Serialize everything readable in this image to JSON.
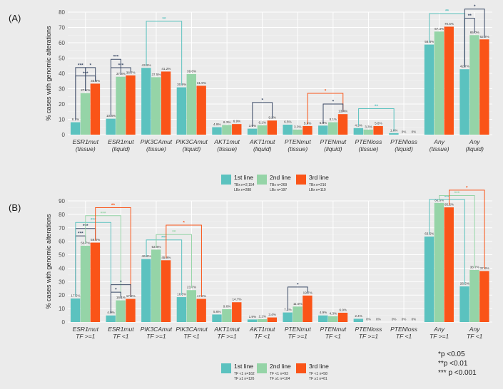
{
  "chart_data": [
    {
      "type": "bar",
      "panel_label": "(A)",
      "ylabel": "% cases with genomic alterations",
      "ylim": [
        0,
        80
      ],
      "yticks": [
        0,
        10,
        20,
        30,
        40,
        50,
        60,
        70,
        80
      ],
      "categories": [
        [
          "ESR1mut",
          "(tissue)"
        ],
        [
          "ESR1mut",
          "(liquid)"
        ],
        [
          "PIK3CAmut",
          "(tissue)"
        ],
        [
          "PIK3CAmut",
          "(liquid)"
        ],
        [
          "AKT1mut",
          "(tissue)"
        ],
        [
          "AKT1mut",
          "(liquid)"
        ],
        [
          "PTENmut",
          "(tissue)"
        ],
        [
          "PTENmut",
          "(liquid)"
        ],
        [
          "PTENloss",
          "(tissue)"
        ],
        [
          "PTENloss",
          "(liquid)"
        ],
        [
          "Any",
          "(tissue)"
        ],
        [
          "Any",
          "(liquid)"
        ]
      ],
      "series": [
        {
          "name": "1st line",
          "color": "#5bc2bf",
          "values": [
            8.1,
            10.4,
            43.6,
            30.9,
            4.9,
            3.9,
            6.5,
            5.9,
            4.3,
            1.0,
            58.8,
            42.7
          ],
          "labels": [
            "8.1%",
            "10.4%",
            "43.6%",
            "30.9%",
            "4.9%",
            "3.9%",
            "6.5%",
            "5.9%",
            "4.3%",
            "1.0%",
            "58.8%",
            "42.7%"
          ]
        },
        {
          "name": "2nd line",
          "color": "#95d4a7",
          "values": [
            27.1,
            37.8,
            37.5,
            39.6,
            6.3,
            6.1,
            3.3,
            8.1,
            3.3,
            0,
            67.3,
            65.0
          ],
          "labels": [
            "27.1%",
            "37.8%",
            "37.5%",
            "39.6%",
            "6.3%",
            "6.1%",
            "3.3%",
            "8.1%",
            "3.3%",
            "0%",
            "67.3%",
            "65.0%"
          ]
        },
        {
          "name": "3rd line",
          "color": "#fa5418",
          "values": [
            33.3,
            38.7,
            41.2,
            31.9,
            6.9,
            9.2,
            5.6,
            13.4,
            5.6,
            0,
            70.5,
            62.2
          ],
          "labels": [
            "33.3%",
            "38.7%",
            "41.2%",
            "31.9%",
            "6.9%",
            "9.2%",
            "5.6%",
            "13.4%",
            "5.6%",
            "0%",
            "70.5%",
            "62.2%"
          ]
        }
      ],
      "significance": [
        {
          "cat": 0,
          "from": 0,
          "to": 2,
          "level": 0,
          "label": "***",
          "color": "#3b4a66"
        },
        {
          "cat": 0,
          "from": 0,
          "to": 1,
          "level": 1,
          "label": "***",
          "color": "#3b4a66"
        },
        {
          "cat": 0,
          "from": 1,
          "to": 2,
          "level": 1,
          "label": "*",
          "color": "#3b4a66"
        },
        {
          "cat": 1,
          "from": 0,
          "to": 2,
          "level": 0,
          "label": "***",
          "color": "#3b4a66"
        },
        {
          "cat": 1,
          "from": 0,
          "to": 1,
          "level": 1,
          "label": "***",
          "color": "#3b4a66"
        },
        {
          "span": [
            2,
            0,
            3,
            0
          ],
          "y": 74,
          "label": "**",
          "color": "#5bc2bf"
        },
        {
          "cat": 5,
          "from": 0,
          "to": 2,
          "y": 21,
          "label": "*",
          "color": "#3b4a66"
        },
        {
          "span": [
            6,
            2,
            7,
            2
          ],
          "y": 27,
          "label": "*",
          "color": "#fa5418"
        },
        {
          "cat": 7,
          "from": 0,
          "to": 2,
          "y": 20,
          "label": "*",
          "color": "#3b4a66"
        },
        {
          "span": [
            8,
            0,
            9,
            0
          ],
          "y": 17,
          "label": "**",
          "color": "#5bc2bf"
        },
        {
          "span": [
            10,
            0,
            11,
            0
          ],
          "y": 79,
          "label": "**",
          "color": "#5bc2bf"
        },
        {
          "cat": 11,
          "from": 0,
          "to": 1,
          "y": 76,
          "label": "**",
          "color": "#3b4a66"
        },
        {
          "cat": 11,
          "from": 0,
          "to": 2,
          "y": 82,
          "label": "*",
          "color": "#3b4a66"
        }
      ],
      "legend": [
        {
          "name": "1st line",
          "color": "#5bc2bf",
          "note1": "TBx n=2,154",
          "note2": "LBx n=288"
        },
        {
          "name": "2nd line",
          "color": "#95d4a7",
          "note1": "TBx n=269",
          "note2": "LBx n=197"
        },
        {
          "name": "3rd line",
          "color": "#fa5418",
          "note1": "TBx n=216",
          "note2": "LBx n=119"
        }
      ]
    },
    {
      "type": "bar",
      "panel_label": "(B)",
      "ylabel": "% cases with genomic alterations",
      "ylim": [
        0,
        90
      ],
      "yticks": [
        0,
        10,
        20,
        30,
        40,
        50,
        60,
        70,
        80,
        90
      ],
      "categories": [
        [
          "ESR1mut",
          "TF >=1"
        ],
        [
          "ESR1mut",
          "TF <1"
        ],
        [
          "PIK3CAmut",
          "TF >=1"
        ],
        [
          "PIK3CAmut",
          "TF <1"
        ],
        [
          "AKT1mut",
          "TF >=1"
        ],
        [
          "AKT1mut",
          "TF <1"
        ],
        [
          "PTENmut",
          "TF >=1"
        ],
        [
          "PTENmut",
          "TF <1"
        ],
        [
          "PTENloss",
          "TF >=1"
        ],
        [
          "PTENloss",
          "TF <1"
        ],
        [
          "Any",
          "TF >=1"
        ],
        [
          "Any",
          "TF <1"
        ]
      ],
      "series": [
        {
          "name": "1st line",
          "color": "#5bc2bf",
          "values": [
            17.5,
            4.9,
            46.8,
            18.5,
            5.6,
            1.9,
            7.1,
            4.9,
            2.4,
            0,
            63.5,
            26.5
          ],
          "labels": [
            "17.5%",
            "4.9%",
            "46.8%",
            "18.5%",
            "5.6%",
            "1.9%",
            "7.1%",
            "4.9%",
            "2.4%",
            "0%",
            "63.5%",
            "26.5%"
          ]
        },
        {
          "name": "2nd line",
          "color": "#95d4a7",
          "values": [
            56.7,
            16.1,
            53.8,
            23.7,
            9.6,
            2.1,
            11.5,
            4.3,
            0,
            0,
            88.5,
            38.7
          ],
          "labels": [
            "56.7%",
            "16.1%",
            "53.8%",
            "23.7%",
            "9.6%",
            "2.1%",
            "11.5%",
            "4.3%",
            "0%",
            "0%",
            "88.5%",
            "38.7%"
          ]
        },
        {
          "name": "3rd line",
          "color": "#fa5418",
          "values": [
            59.0,
            17.2,
            45.9,
            17.2,
            14.7,
            3.4,
            19.7,
            6.9,
            0,
            0,
            85.2,
            37.9
          ],
          "labels": [
            "59.0%",
            "17.2%",
            "45.9%",
            "17.2%",
            "14.7%",
            "3.4%",
            "19.7%",
            "6.9%",
            "0%",
            "0%",
            "85.2%",
            "37.9%"
          ]
        }
      ],
      "significance": [
        {
          "cat": 0,
          "from": 0,
          "to": 1,
          "level": 0,
          "label": "***",
          "color": "#3b4a66"
        },
        {
          "cat": 0,
          "from": 0,
          "to": 2,
          "level": 1,
          "label": "***",
          "color": "#3b4a66"
        },
        {
          "span": [
            0,
            0,
            1,
            0
          ],
          "y": 74,
          "label": "***",
          "color": "#5bc2bf"
        },
        {
          "span": [
            0,
            1,
            1,
            1
          ],
          "y": 79,
          "label": "***",
          "color": "#95d4a7"
        },
        {
          "span": [
            0,
            2,
            1,
            2
          ],
          "y": 85,
          "label": "**",
          "color": "#fa5418"
        },
        {
          "cat": 1,
          "from": 0,
          "to": 1,
          "level": 0,
          "label": "*",
          "color": "#3b4a66"
        },
        {
          "cat": 1,
          "from": 0,
          "to": 2,
          "level": 1,
          "label": "*",
          "color": "#3b4a66"
        },
        {
          "span": [
            2,
            0,
            3,
            0
          ],
          "y": 61,
          "label": "***",
          "color": "#5bc2bf"
        },
        {
          "span": [
            2,
            1,
            3,
            1
          ],
          "y": 65,
          "label": "**",
          "color": "#95d4a7"
        },
        {
          "span": [
            2,
            2,
            3,
            2
          ],
          "y": 72,
          "label": "*",
          "color": "#fa5418"
        },
        {
          "cat": 6,
          "from": 0,
          "to": 2,
          "y": 26,
          "label": "*",
          "color": "#3b4a66"
        },
        {
          "span": [
            10,
            0,
            11,
            0
          ],
          "y": 91,
          "label": "***",
          "color": "#5bc2bf"
        },
        {
          "span": [
            10,
            1,
            11,
            1
          ],
          "y": 94,
          "label": "***",
          "color": "#95d4a7"
        },
        {
          "span": [
            10,
            2,
            11,
            2
          ],
          "y": 98,
          "label": "*",
          "color": "#fa5418"
        }
      ],
      "legend": [
        {
          "name": "1st line",
          "color": "#5bc2bf",
          "note1": "TF <1 n=162",
          "note2": "TF ≥1 n=126"
        },
        {
          "name": "2nd line",
          "color": "#95d4a7",
          "note1": "TF <1 n=93",
          "note2": "TF ≥1 n=104"
        },
        {
          "name": "3rd line",
          "color": "#fa5418",
          "note1": "TF <1 n=58",
          "note2": "TF ≥1 n=61"
        }
      ]
    }
  ],
  "footnote": [
    "*p <0.05",
    "**p <0.01",
    "*** p <0.001"
  ]
}
